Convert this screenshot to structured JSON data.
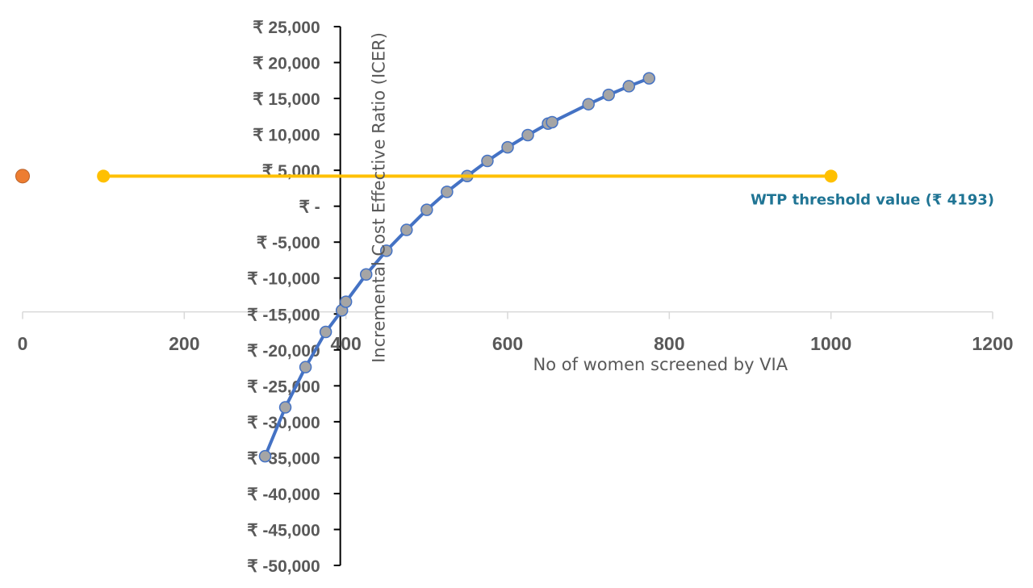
{
  "chart_data": {
    "type": "scatter",
    "xlabel": "No of women screened by VIA",
    "ylabel": "Incremental Cost Effective Ratio (ICER)",
    "xlim": [
      0,
      1200
    ],
    "ylim": [
      -50000,
      25000
    ],
    "x_ticks": [
      {
        "value": 0,
        "label": "0"
      },
      {
        "value": 200,
        "label": "200"
      },
      {
        "value": 400,
        "label": "400"
      },
      {
        "value": 600,
        "label": "600"
      },
      {
        "value": 800,
        "label": "800"
      },
      {
        "value": 1000,
        "label": "1000"
      },
      {
        "value": 1200,
        "label": "1200"
      }
    ],
    "y_ticks": [
      {
        "value": 25000,
        "label": "₹ 25,000"
      },
      {
        "value": 20000,
        "label": "₹ 20,000"
      },
      {
        "value": 15000,
        "label": "₹ 15,000"
      },
      {
        "value": 10000,
        "label": "₹ 10,000"
      },
      {
        "value": 5000,
        "label": "₹ 5,000"
      },
      {
        "value": 0,
        "label": "₹ -"
      },
      {
        "value": -5000,
        "label": "₹ -5,000"
      },
      {
        "value": -10000,
        "label": "₹ -10,000"
      },
      {
        "value": -15000,
        "label": "₹ -15,000"
      },
      {
        "value": -20000,
        "label": "₹ -20,000"
      },
      {
        "value": -25000,
        "label": "₹ -25,000"
      },
      {
        "value": -30000,
        "label": "₹ -30,000"
      },
      {
        "value": -35000,
        "label": "₹ -35,000"
      },
      {
        "value": -40000,
        "label": "₹ -40,000"
      },
      {
        "value": -45000,
        "label": "₹ -45,000"
      },
      {
        "value": -50000,
        "label": "₹ -50,000"
      }
    ],
    "y_axis_crosses_x_at": 393,
    "x_axis_crosses_y_at": -14700,
    "series": [
      {
        "color": "#4472C4",
        "marker_color": "#A5A5A5",
        "points": [
          [
            300,
            -34800
          ],
          [
            325,
            -28000
          ],
          [
            350,
            -22400
          ],
          [
            375,
            -17500
          ],
          [
            395,
            -14500
          ],
          [
            400,
            -13300
          ],
          [
            425,
            -9500
          ],
          [
            450,
            -6200
          ],
          [
            475,
            -3300
          ],
          [
            500,
            -500
          ],
          [
            525,
            2000
          ],
          [
            550,
            4200
          ],
          [
            575,
            6300
          ],
          [
            600,
            8200
          ],
          [
            625,
            9900
          ],
          [
            650,
            11500
          ],
          [
            655,
            11700
          ],
          [
            700,
            14200
          ],
          [
            725,
            15500
          ],
          [
            750,
            16700
          ],
          [
            775,
            17800
          ]
        ]
      },
      {
        "label": "WTP threshold value (₹ 4193)",
        "color": "#FFC000",
        "label_color": "#1F7494",
        "points": [
          [
            100,
            4193
          ],
          [
            1000,
            4193
          ]
        ]
      },
      {
        "color": "#ED7D31",
        "points": [
          [
            0,
            4193
          ]
        ]
      }
    ]
  }
}
